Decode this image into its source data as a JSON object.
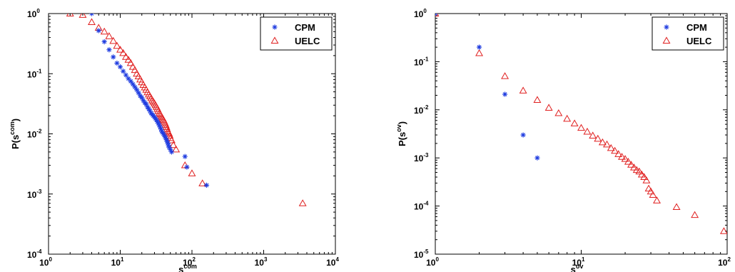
{
  "chart_data": [
    {
      "type": "scatter",
      "title": "",
      "xscale": "log",
      "yscale": "log",
      "xlim": [
        1,
        10000
      ],
      "ylim": [
        0.0001,
        1
      ],
      "xlabel": {
        "base": "s",
        "sup": "com"
      },
      "ylabel": {
        "base": "P(s",
        "sup": "com",
        "close": ")"
      },
      "xticks": [
        {
          "base": "10",
          "exp": "0"
        },
        {
          "base": "10",
          "exp": "1"
        },
        {
          "base": "10",
          "exp": "2"
        },
        {
          "base": "10",
          "exp": "3"
        },
        {
          "base": "10",
          "exp": "4"
        }
      ],
      "yticks": [
        {
          "base": "10",
          "exp": "-4"
        },
        {
          "base": "10",
          "exp": "-3"
        },
        {
          "base": "10",
          "exp": "-2"
        },
        {
          "base": "10",
          "exp": "-1"
        },
        {
          "base": "10",
          "exp": "0"
        }
      ],
      "legend_position": "top-right",
      "series": [
        {
          "name": "CPM",
          "marker": "asterisk",
          "color": "#1f3ce0",
          "x": [
            4,
            5,
            6,
            7,
            8,
            9,
            10,
            11,
            12,
            13,
            14,
            15,
            16,
            17,
            18,
            19,
            20,
            21,
            22,
            23,
            24,
            25,
            26,
            27,
            28,
            29,
            30,
            31,
            32,
            33,
            34,
            35,
            36,
            37,
            38,
            39,
            40,
            41,
            42,
            43,
            44,
            45,
            46,
            47,
            48,
            50,
            52,
            80,
            85,
            160
          ],
          "y": [
            1.0,
            0.52,
            0.34,
            0.25,
            0.19,
            0.15,
            0.13,
            0.11,
            0.095,
            0.083,
            0.075,
            0.067,
            0.06,
            0.054,
            0.048,
            0.043,
            0.04,
            0.036,
            0.033,
            0.031,
            0.028,
            0.026,
            0.024,
            0.022,
            0.021,
            0.02,
            0.019,
            0.018,
            0.017,
            0.016,
            0.015,
            0.014,
            0.013,
            0.012,
            0.011,
            0.0105,
            0.01,
            0.0095,
            0.009,
            0.0085,
            0.008,
            0.0075,
            0.007,
            0.0065,
            0.006,
            0.0055,
            0.005,
            0.0042,
            0.0028,
            0.0014
          ]
        },
        {
          "name": "UELC",
          "marker": "triangle",
          "color": "#e02020",
          "x": [
            2,
            3,
            4,
            5,
            6,
            7,
            8,
            9,
            10,
            11,
            12,
            13,
            14,
            15,
            16,
            17,
            18,
            19,
            20,
            21,
            22,
            23,
            24,
            25,
            26,
            27,
            28,
            29,
            30,
            31,
            32,
            33,
            34,
            35,
            36,
            37,
            38,
            39,
            40,
            41,
            42,
            43,
            44,
            45,
            46,
            47,
            48,
            49,
            50,
            52,
            55,
            60,
            80,
            100,
            140,
            3500
          ],
          "y": [
            1.0,
            0.95,
            0.72,
            0.58,
            0.5,
            0.42,
            0.35,
            0.29,
            0.25,
            0.22,
            0.19,
            0.17,
            0.15,
            0.13,
            0.115,
            0.1,
            0.09,
            0.08,
            0.072,
            0.065,
            0.059,
            0.054,
            0.049,
            0.045,
            0.042,
            0.039,
            0.036,
            0.034,
            0.032,
            0.03,
            0.028,
            0.026,
            0.024,
            0.022,
            0.021,
            0.02,
            0.019,
            0.018,
            0.017,
            0.016,
            0.015,
            0.014,
            0.013,
            0.012,
            0.011,
            0.0105,
            0.01,
            0.0093,
            0.0085,
            0.0078,
            0.0065,
            0.0055,
            0.003,
            0.0022,
            0.0015,
            0.0007
          ]
        }
      ]
    },
    {
      "type": "scatter",
      "title": "",
      "xscale": "log",
      "yscale": "log",
      "xlim": [
        1,
        100
      ],
      "ylim": [
        1e-05,
        1
      ],
      "xlabel": {
        "base": "s",
        "sup": "ov"
      },
      "ylabel": {
        "base": "P(s",
        "sup": "ov",
        "close": ")"
      },
      "xticks": [
        {
          "base": "10",
          "exp": "0"
        },
        {
          "base": "10",
          "exp": "1"
        },
        {
          "base": "10",
          "exp": "2"
        }
      ],
      "yticks": [
        {
          "base": "10",
          "exp": "-5"
        },
        {
          "base": "10",
          "exp": "-4"
        },
        {
          "base": "10",
          "exp": "-3"
        },
        {
          "base": "10",
          "exp": "-2"
        },
        {
          "base": "10",
          "exp": "-1"
        },
        {
          "base": "10",
          "exp": "0"
        }
      ],
      "legend_position": "top-right",
      "series": [
        {
          "name": "CPM",
          "marker": "asterisk",
          "color": "#1f3ce0",
          "x": [
            1,
            2,
            3,
            4,
            5
          ],
          "y": [
            1.0,
            0.2,
            0.021,
            0.003,
            0.001
          ]
        },
        {
          "name": "UELC",
          "marker": "triangle",
          "color": "#e02020",
          "x": [
            1,
            2,
            3,
            4,
            5,
            6,
            7,
            8,
            9,
            10,
            11,
            12,
            13,
            14,
            15,
            16,
            17,
            18,
            19,
            20,
            21,
            22,
            23,
            24,
            25,
            26,
            27,
            28,
            29,
            30,
            31,
            33,
            45,
            60,
            95
          ],
          "y": [
            1.0,
            0.15,
            0.05,
            0.025,
            0.016,
            0.011,
            0.0085,
            0.0065,
            0.0052,
            0.0042,
            0.0035,
            0.0029,
            0.0025,
            0.0021,
            0.0019,
            0.0016,
            0.0014,
            0.0012,
            0.00105,
            0.00095,
            0.00083,
            0.00072,
            0.00063,
            0.00056,
            0.00052,
            0.00045,
            0.0004,
            0.00034,
            0.00023,
            0.0002,
            0.00017,
            0.00013,
            9.5e-05,
            6.5e-05,
            3e-05
          ]
        }
      ]
    }
  ]
}
